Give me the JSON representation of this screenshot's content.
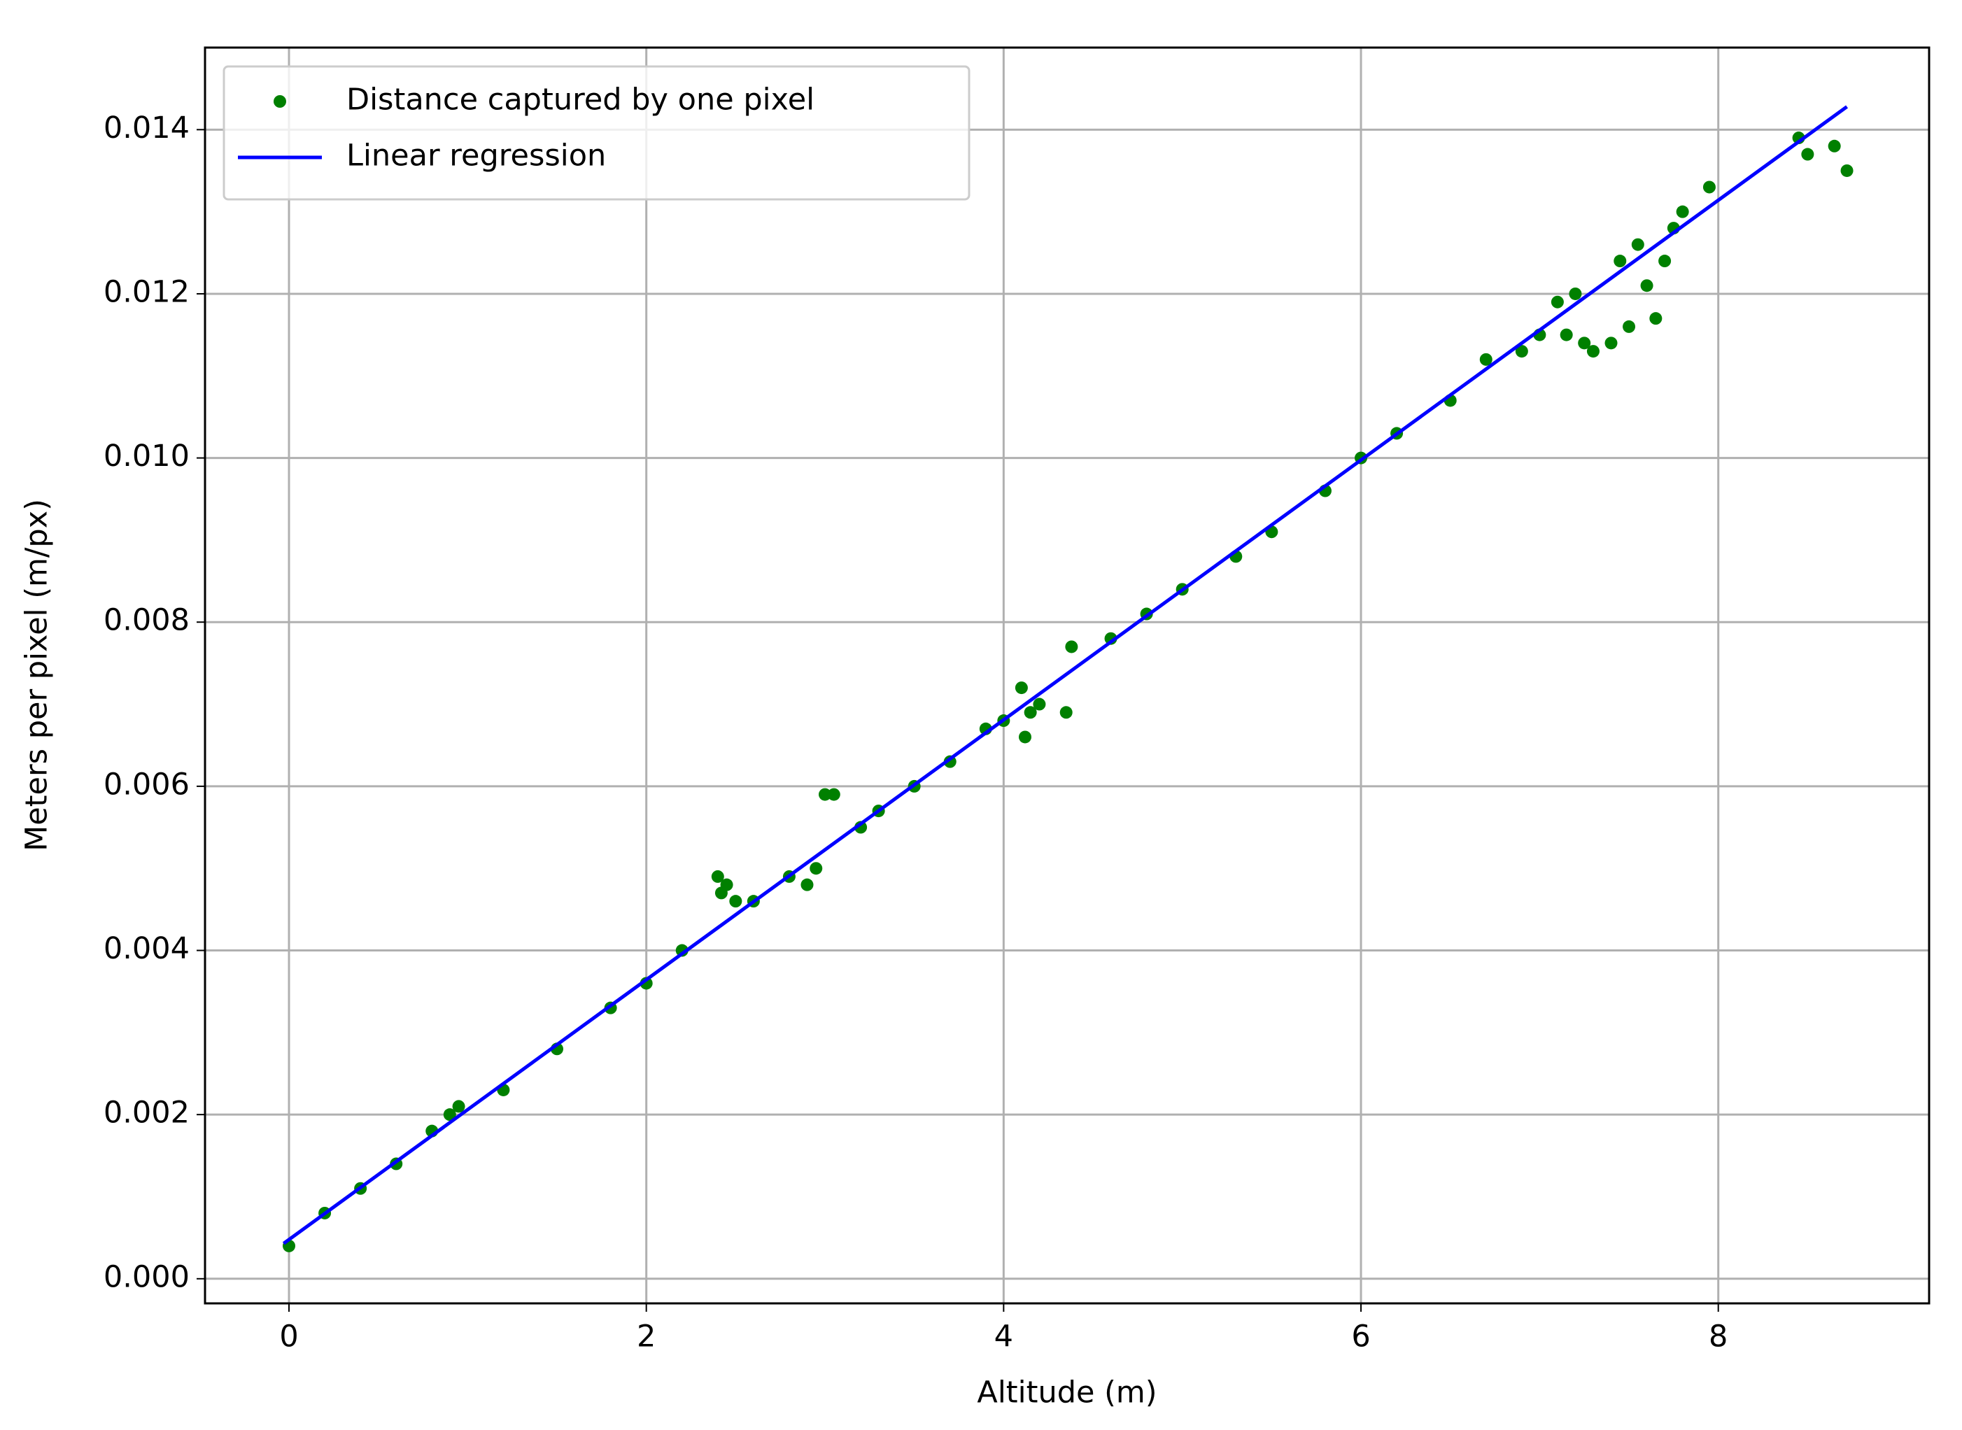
{
  "chart_data": {
    "type": "scatter",
    "xlabel": "Altitude (m)",
    "ylabel": "Meters per pixel (m/px)",
    "xlim": [
      -0.47,
      9.18
    ],
    "ylim": [
      -0.0003,
      0.015
    ],
    "xticks": [
      0,
      2,
      4,
      6,
      8
    ],
    "yticks": [
      {
        "value": 0,
        "label": "0.000"
      },
      {
        "value": 0.002,
        "label": "0.002"
      },
      {
        "value": 0.004,
        "label": "0.004"
      },
      {
        "value": 0.006,
        "label": "0.006"
      },
      {
        "value": 0.008,
        "label": "0.008"
      },
      {
        "value": 0.01,
        "label": "0.010"
      },
      {
        "value": 0.012,
        "label": "0.012"
      },
      {
        "value": 0.014,
        "label": "0.014"
      }
    ],
    "grid": true,
    "legend": "upper left",
    "series": [
      {
        "name": "Distance captured by one pixel",
        "color": "#008000",
        "mode": "markers",
        "x": [
          0,
          0.2,
          0.4,
          0.6,
          0.8,
          0.9,
          0.95,
          1.2,
          1.5,
          1.8,
          2.0,
          2.2,
          2.4,
          2.45,
          2.42,
          2.5,
          2.6,
          2.8,
          2.9,
          2.95,
          3.0,
          3.05,
          3.2,
          3.3,
          3.5,
          3.7,
          3.9,
          4.0,
          4.1,
          4.12,
          4.15,
          4.2,
          4.35,
          4.38,
          4.6,
          4.8,
          5.0,
          5.3,
          5.5,
          5.8,
          6.0,
          6.2,
          6.5,
          6.7,
          6.9,
          7.0,
          7.1,
          7.2,
          7.15,
          7.25,
          7.3,
          7.4,
          7.45,
          7.5,
          7.6,
          7.55,
          7.65,
          7.7,
          7.8,
          7.75,
          7.95,
          8.45,
          8.5,
          8.65,
          8.72
        ],
        "values": [
          0.0004,
          0.0008,
          0.0011,
          0.0014,
          0.0018,
          0.002,
          0.0021,
          0.0023,
          0.0028,
          0.0033,
          0.0036,
          0.004,
          0.0049,
          0.0048,
          0.0047,
          0.0046,
          0.0046,
          0.0049,
          0.0048,
          0.005,
          0.0059,
          0.0059,
          0.0055,
          0.0057,
          0.006,
          0.0063,
          0.0067,
          0.0068,
          0.0072,
          0.0066,
          0.0069,
          0.007,
          0.0069,
          0.0077,
          0.0078,
          0.0081,
          0.0084,
          0.0088,
          0.0091,
          0.0096,
          0.01,
          0.0103,
          0.0107,
          0.0112,
          0.0113,
          0.0115,
          0.0119,
          0.012,
          0.0115,
          0.0114,
          0.0113,
          0.0114,
          0.0124,
          0.0116,
          0.0121,
          0.0126,
          0.0117,
          0.0124,
          0.013,
          0.0128,
          0.0133,
          0.0139,
          0.0137,
          0.0138,
          0.0135
        ]
      },
      {
        "name": "Linear regression",
        "color": "#0000ff",
        "mode": "line",
        "x": [
          -0.03,
          8.72
        ],
        "values": [
          0.00043,
          0.01428
        ]
      }
    ]
  }
}
